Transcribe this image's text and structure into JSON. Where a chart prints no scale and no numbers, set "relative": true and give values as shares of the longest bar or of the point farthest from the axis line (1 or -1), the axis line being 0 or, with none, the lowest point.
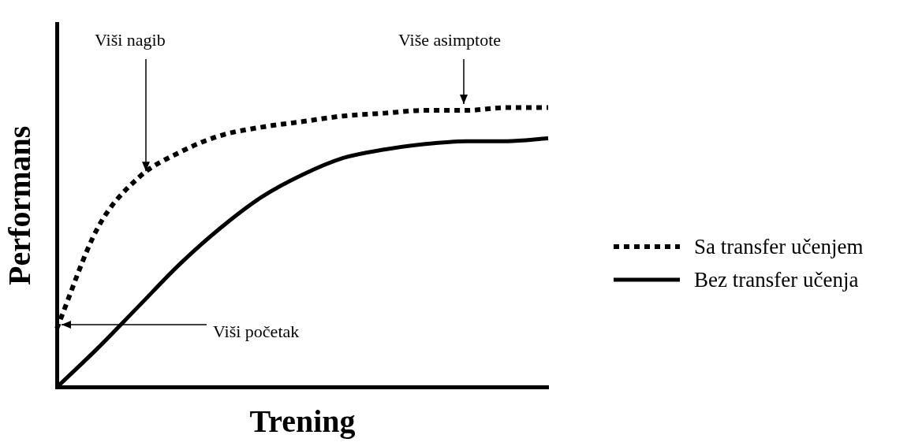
{
  "chart_data": {
    "type": "line",
    "relative": true,
    "xlabel": "Trening",
    "ylabel": "Performans",
    "categories": [
      null,
      null,
      null,
      null,
      null,
      null,
      null,
      null,
      null,
      null,
      null,
      null,
      null
    ],
    "series": [
      {
        "name": "Sa transfer učenjem",
        "color": "#000000",
        "line_style": "dotted",
        "values": [
          0.21,
          0.57,
          0.75,
          0.84,
          0.9,
          0.93,
          0.95,
          0.97,
          0.98,
          0.99,
          0.99,
          1.0,
          1.0
        ]
      },
      {
        "name": "Bez transfer učenja",
        "color": "#000000",
        "line_style": "solid",
        "values": [
          0,
          0.14,
          0.29,
          0.44,
          0.57,
          0.68,
          0.76,
          0.82,
          0.85,
          0.87,
          0.88,
          0.88,
          0.89
        ]
      }
    ],
    "annotations": [
      "Viši nagib",
      "Više asimptote",
      "Viši početak"
    ],
    "legend": "right",
    "marker": "none",
    "grid": false
  }
}
